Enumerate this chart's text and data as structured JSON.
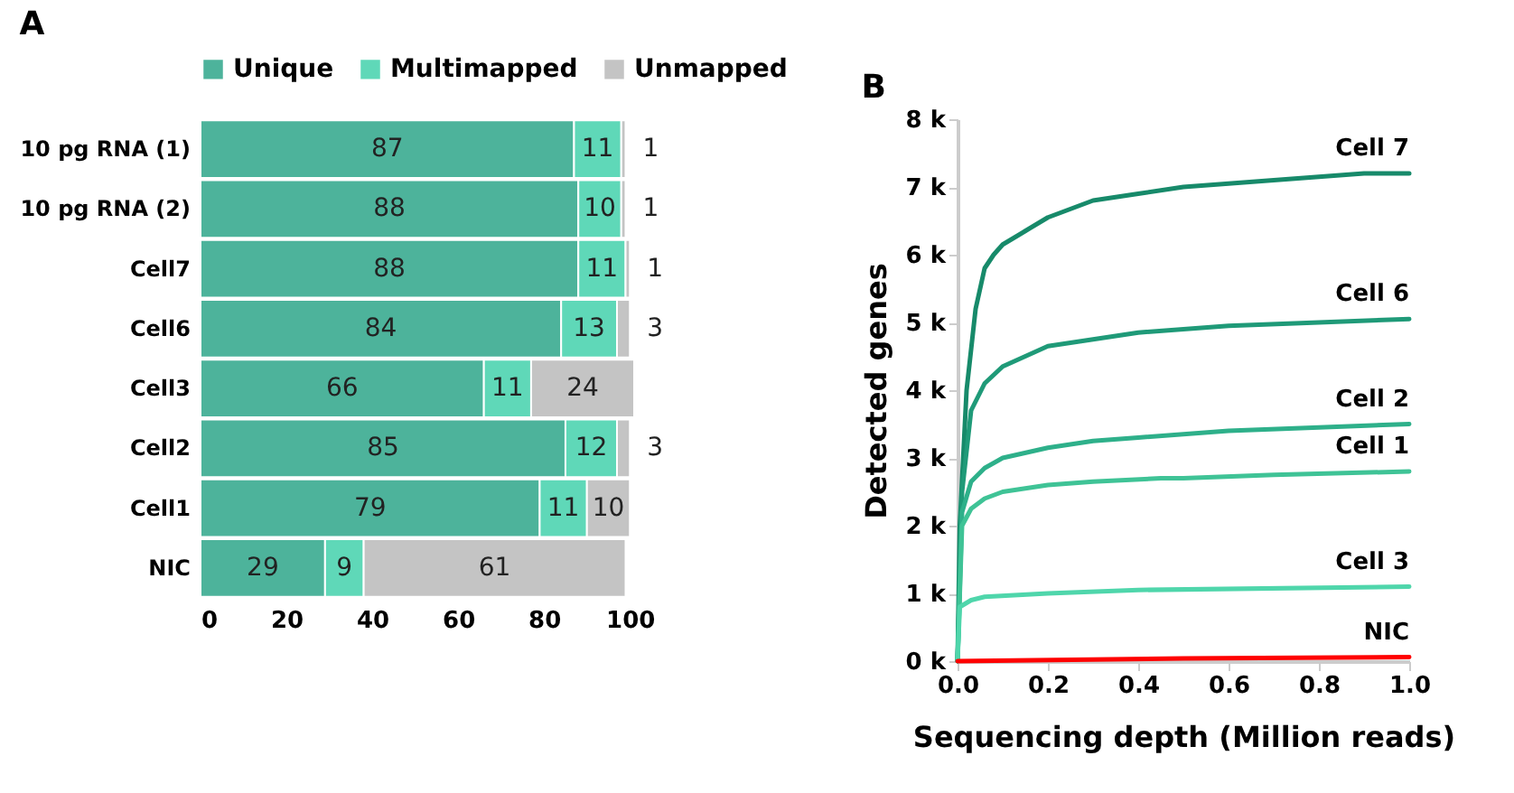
{
  "chart_data": [
    {
      "type": "bar",
      "title": "A",
      "orientation": "horizontal",
      "stacked": true,
      "data_labels": true,
      "legend": "top",
      "grid": false,
      "categories": [
        "10 pg RNA (1)",
        "10 pg RNA (2)",
        "Cell7",
        "Cell6",
        "Cell3",
        "Cell2",
        "Cell1",
        "NIC"
      ],
      "xlim": [
        0,
        101
      ],
      "xticks": [
        0,
        20,
        40,
        60,
        80,
        100
      ],
      "series": [
        {
          "name": "Unique",
          "color": "#4db39b",
          "values": [
            87,
            88,
            88,
            84,
            66,
            85,
            79,
            29
          ]
        },
        {
          "name": "Multimapped",
          "color": "#5fd8b8",
          "values": [
            11,
            10,
            11,
            13,
            11,
            12,
            11,
            9
          ]
        },
        {
          "name": "Unmapped",
          "color": "#c4c4c4",
          "values": [
            1,
            1,
            1,
            3,
            24,
            3,
            10,
            61
          ]
        }
      ]
    },
    {
      "type": "line",
      "title": "B",
      "xlabel": "Sequencing depth (Million reads)",
      "ylabel": "Detected genes",
      "legend": false,
      "grid": false,
      "xlim": [
        0,
        1
      ],
      "xticks": [
        {
          "value": 0,
          "label": "0.0"
        },
        0.2,
        0.4,
        0.6,
        0.8,
        {
          "value": 1,
          "label": "1.0"
        }
      ],
      "ylim": [
        0,
        8000
      ],
      "yticks": [
        {
          "value": 0,
          "label": "0 k"
        },
        {
          "value": 1000,
          "label": "1 k"
        },
        {
          "value": 2000,
          "label": "2 k"
        },
        {
          "value": 3000,
          "label": "3 k"
        },
        {
          "value": 4000,
          "label": "4 k"
        },
        {
          "value": 5000,
          "label": "5 k"
        },
        {
          "value": 6000,
          "label": "6 k"
        },
        {
          "value": 7000,
          "label": "7 k"
        },
        {
          "value": 8000,
          "label": "8 k"
        }
      ],
      "series": [
        {
          "name": "Cell 7",
          "color": "#178a6a",
          "x": [
            0,
            0.005,
            0.02,
            0.04,
            0.06,
            0.08,
            0.1,
            0.15,
            0.2,
            0.3,
            0.4,
            0.5,
            0.6,
            0.7,
            0.8,
            0.9,
            1.0
          ],
          "values": [
            0,
            2000,
            4000,
            5200,
            5800,
            6000,
            6150,
            6350,
            6550,
            6800,
            6900,
            7000,
            7050,
            7100,
            7150,
            7200,
            7200
          ]
        },
        {
          "name": "Cell 6",
          "color": "#1f9a78",
          "x": [
            0,
            0.01,
            0.03,
            0.06,
            0.1,
            0.15,
            0.2,
            0.3,
            0.4,
            0.6,
            0.8,
            1.0
          ],
          "values": [
            0,
            2500,
            3700,
            4100,
            4350,
            4500,
            4650,
            4750,
            4850,
            4950,
            5000,
            5050
          ]
        },
        {
          "name": "Cell 2",
          "color": "#2eb08a",
          "x": [
            0,
            0.01,
            0.03,
            0.06,
            0.1,
            0.2,
            0.3,
            0.4,
            0.6,
            0.8,
            1.0
          ],
          "values": [
            0,
            2200,
            2650,
            2850,
            3000,
            3150,
            3250,
            3300,
            3400,
            3450,
            3500
          ]
        },
        {
          "name": "Cell 1",
          "color": "#3fc396",
          "x": [
            0,
            0.01,
            0.03,
            0.06,
            0.1,
            0.2,
            0.3,
            0.45,
            0.5,
            0.7,
            1.0
          ],
          "values": [
            0,
            2000,
            2250,
            2400,
            2500,
            2600,
            2650,
            2700,
            2700,
            2750,
            2800
          ]
        },
        {
          "name": "Cell 3",
          "color": "#4fd6ab",
          "x": [
            0,
            0.005,
            0.03,
            0.06,
            0.2,
            0.4,
            1.0
          ],
          "values": [
            0,
            800,
            900,
            950,
            1000,
            1050,
            1100
          ]
        },
        {
          "name": "NIC",
          "color": "#ff0000",
          "x": [
            0,
            0.5,
            1.0
          ],
          "values": [
            0,
            40,
            60
          ]
        }
      ]
    }
  ]
}
